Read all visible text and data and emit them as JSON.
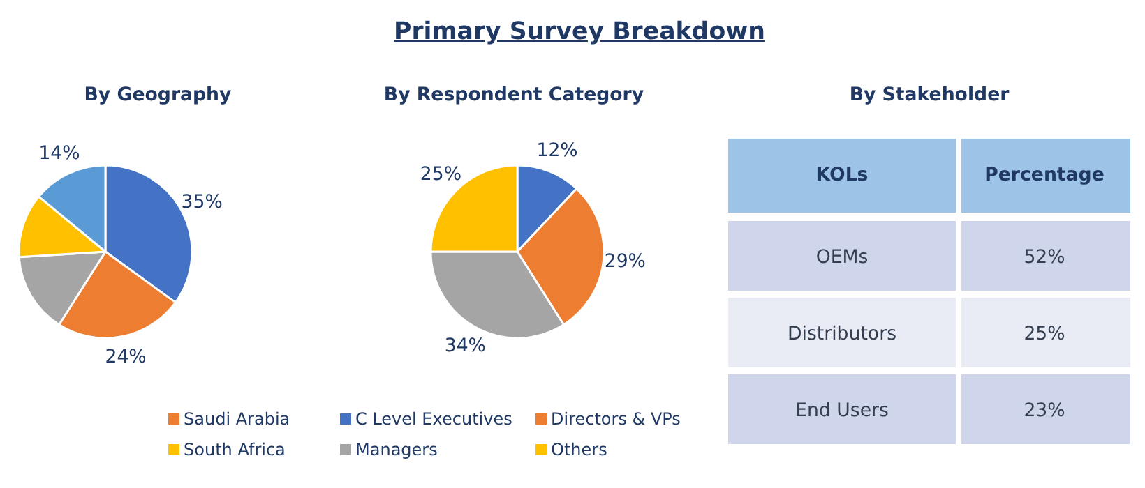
{
  "chart_data": [
    {
      "type": "pie",
      "title": "By Geography",
      "annotations": [
        "Primary Survey Breakdown"
      ],
      "categories": [
        null,
        "Saudi Arabia",
        null,
        "South Africa",
        null
      ],
      "values": [
        35,
        24,
        15,
        12,
        14
      ],
      "colors": [
        "#4472c4",
        "#ed7d31",
        "#a5a5a5",
        "#ffc000",
        "#5b9bd5"
      ],
      "value_labels": [
        "35%",
        "24%",
        null,
        null,
        "14%"
      ],
      "legend": "bottom"
    },
    {
      "type": "pie",
      "title": "By Respondent Category",
      "categories": [
        "C Level Executives",
        "Directors & VPs",
        "Managers",
        "Others"
      ],
      "values": [
        12,
        29,
        34,
        25
      ],
      "colors": [
        "#4472c4",
        "#ed7d31",
        "#a5a5a5",
        "#ffc000"
      ],
      "value_labels": [
        "12%",
        "29%",
        "34%",
        "25%"
      ],
      "legend": "bottom"
    },
    {
      "type": "other",
      "title": "By Stakeholder",
      "annotations": [
        "KOLs",
        "Percentage"
      ],
      "categories": [
        "OEMs",
        "Distributors",
        "End Users"
      ],
      "value_labels": [
        "52%",
        "25%",
        "23%"
      ],
      "colors": [
        "#cfd5ea",
        "#e9ebf5",
        "#cfd5ea"
      ]
    }
  ]
}
